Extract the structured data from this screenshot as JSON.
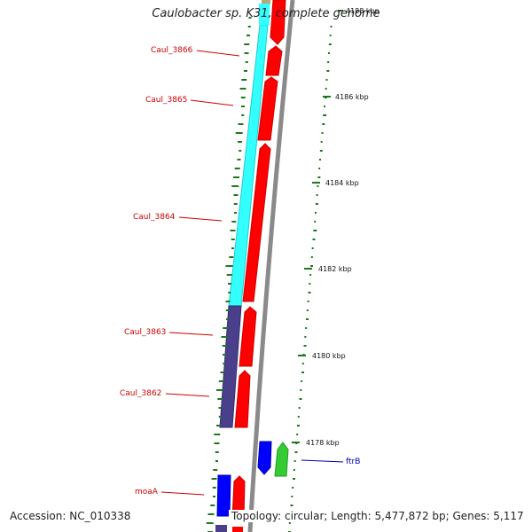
{
  "title": "Caulobacter sp. K31, complete genome",
  "footer": {
    "accession": "Accession: NC_010338",
    "topology": "Topology: circular; Length: 5,477,872 bp; Genes: 5,117"
  },
  "scale_labels": [
    "4188 kbp",
    "4186 kbp",
    "4184 kbp",
    "4182 kbp",
    "4180 kbp",
    "4178 kbp"
  ],
  "gene_labels": [
    {
      "text": "Caul_3866",
      "color": "#cc0000"
    },
    {
      "text": "Caul_3865",
      "color": "#cc0000"
    },
    {
      "text": "Caul_3864",
      "color": "#cc0000"
    },
    {
      "text": "Caul_3863",
      "color": "#cc0000"
    },
    {
      "text": "Caul_3862",
      "color": "#cc0000"
    },
    {
      "text": "moaA",
      "color": "#cc0000"
    },
    {
      "text": "ftrB",
      "color": "#0000aa"
    }
  ],
  "colors": {
    "cyan_track": "#33ffff",
    "purple_track": "#4a3f8a",
    "red_gene": "#ff0000",
    "blue_gene": "#0000ff",
    "green_gene": "#33cc33",
    "tan_gene": "#b8a878",
    "gc_tick": "#1a7a1a",
    "backbone": "#8a8a8a"
  }
}
